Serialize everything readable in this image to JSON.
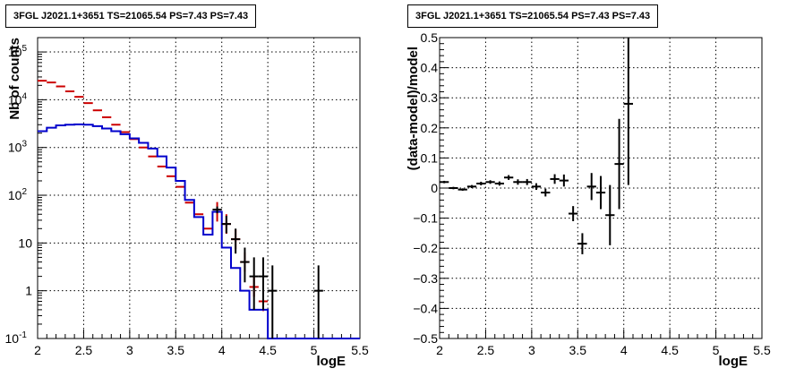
{
  "left_panel": {
    "title": "3FGL J2021.1+3651 TS=21065.54 PS=7.43 PS=7.43"
  },
  "right_panel": {
    "title": "3FGL J2021.1+3651 TS=21065.54 PS=7.43 PS=7.43"
  },
  "colors": {
    "data": "#000000",
    "model_total": "#cc0000",
    "model_source": "#0000cc"
  },
  "chart_data": [
    {
      "type": "line",
      "title": "3FGL J2021.1+3651 TS=21065.54 PS=7.43 PS=7.43",
      "xlabel": "logE",
      "ylabel": "Nb of counts",
      "xlim": [
        2,
        5.5
      ],
      "ylim": [
        0.1,
        200000
      ],
      "yscale": "log",
      "grid": true,
      "x_ticks": [
        "2",
        "2.5",
        "3",
        "3.5",
        "4",
        "4.5",
        "5",
        "5.5"
      ],
      "y_ticks": [
        {
          "value": 0.1,
          "base": "10",
          "exp": "-1"
        },
        {
          "value": 1,
          "base": "1",
          "exp": ""
        },
        {
          "value": 10,
          "base": "10",
          "exp": ""
        },
        {
          "value": 100,
          "base": "10",
          "exp": "2"
        },
        {
          "value": 1000,
          "base": "10",
          "exp": "3"
        },
        {
          "value": 10000,
          "base": "10",
          "exp": "4"
        },
        {
          "value": 100000,
          "base": "10",
          "exp": "5"
        }
      ],
      "bin_edges": [
        2.0,
        2.1,
        2.2,
        2.3,
        2.4,
        2.5,
        2.6,
        2.7,
        2.8,
        2.9,
        3.0,
        3.1,
        3.2,
        3.3,
        3.4,
        3.5,
        3.6,
        3.7,
        3.8,
        3.9,
        4.0,
        4.1,
        4.2,
        4.3,
        4.4,
        4.5,
        4.6,
        4.7,
        4.8,
        4.9,
        5.0,
        5.1,
        5.2,
        5.3,
        5.4,
        5.5
      ],
      "series": [
        {
          "role": "data",
          "x": [
            2.05,
            2.15,
            2.25,
            2.35,
            2.45,
            2.55,
            2.65,
            2.75,
            2.85,
            2.95,
            3.05,
            3.15,
            3.25,
            3.35,
            3.45,
            3.55,
            3.65,
            3.75,
            3.85,
            3.95,
            4.05,
            4.15,
            4.25,
            4.35,
            4.45,
            4.55,
            5.05
          ],
          "y": [
            25000,
            23000,
            19000,
            15000,
            11500,
            8500,
            6000,
            4300,
            3000,
            2100,
            1500,
            1000,
            650,
            400,
            250,
            150,
            70,
            40,
            20,
            50,
            25,
            12,
            4,
            2,
            2,
            1,
            1
          ],
          "yerr_low": [
            0,
            0,
            0,
            0,
            0,
            0,
            0,
            0,
            0,
            0,
            0,
            0,
            0,
            0,
            0,
            0,
            0,
            0,
            0,
            8,
            9,
            6,
            2.5,
            1.6,
            1.6,
            0.99,
            0.99
          ],
          "yerr_high": [
            0,
            0,
            0,
            0,
            0,
            0,
            0,
            0,
            0,
            0,
            0,
            0,
            0,
            0,
            0,
            0,
            0,
            0,
            0,
            8,
            12,
            8,
            4,
            3,
            3,
            2.4,
            2.4
          ]
        },
        {
          "role": "model_total",
          "values": [
            25000,
            23000,
            19000,
            15000,
            11500,
            8500,
            6000,
            4300,
            3000,
            2100,
            1500,
            1000,
            650,
            400,
            250,
            150,
            70,
            40,
            20,
            45,
            25,
            12,
            4,
            1.2,
            0.6,
            0.1,
            0.1,
            0.1,
            0.1,
            0.1,
            0.1,
            0.1,
            0.1,
            0.1,
            0.1
          ]
        },
        {
          "role": "model_source",
          "values": [
            2200,
            2600,
            2900,
            3000,
            3050,
            3000,
            2800,
            2500,
            2200,
            1900,
            1550,
            1250,
            950,
            650,
            380,
            200,
            80,
            35,
            15,
            45,
            8,
            3,
            1,
            0.4,
            0.4,
            0.1,
            0.1,
            0.1,
            0.1,
            0.1,
            0.1,
            0.1,
            0.1,
            0.1,
            0.1
          ]
        }
      ]
    },
    {
      "type": "scatter",
      "title": "3FGL J2021.1+3651 TS=21065.54 PS=7.43 PS=7.43",
      "xlabel": "logE",
      "ylabel": "(data-model)/model",
      "xlim": [
        2,
        5.5
      ],
      "ylim": [
        -0.5,
        0.5
      ],
      "grid": true,
      "x_ticks": [
        "2",
        "2.5",
        "3",
        "3.5",
        "4",
        "4.5",
        "5",
        "5.5"
      ],
      "y_ticks": [
        "−0.5",
        "−0.4",
        "−0.3",
        "−0.2",
        "−0.1",
        "0",
        "0.1",
        "0.2",
        "0.3",
        "0.4",
        "0.5"
      ],
      "x": [
        2.05,
        2.15,
        2.25,
        2.35,
        2.45,
        2.55,
        2.65,
        2.75,
        2.85,
        2.95,
        3.05,
        3.15,
        3.25,
        3.35,
        3.45,
        3.55,
        3.65,
        3.75,
        3.85,
        3.95,
        4.05
      ],
      "y": [
        0.02,
        0.0,
        -0.005,
        0.005,
        0.015,
        0.02,
        0.015,
        0.035,
        0.02,
        0.02,
        0.005,
        -0.015,
        0.03,
        0.025,
        -0.085,
        -0.185,
        0.005,
        -0.015,
        -0.09,
        0.08,
        0.28
      ],
      "yerr": [
        0.004,
        0.004,
        0.004,
        0.005,
        0.006,
        0.006,
        0.007,
        0.008,
        0.009,
        0.01,
        0.011,
        0.013,
        0.016,
        0.02,
        0.025,
        0.035,
        0.045,
        0.055,
        0.1,
        0.15,
        0.27
      ]
    }
  ]
}
